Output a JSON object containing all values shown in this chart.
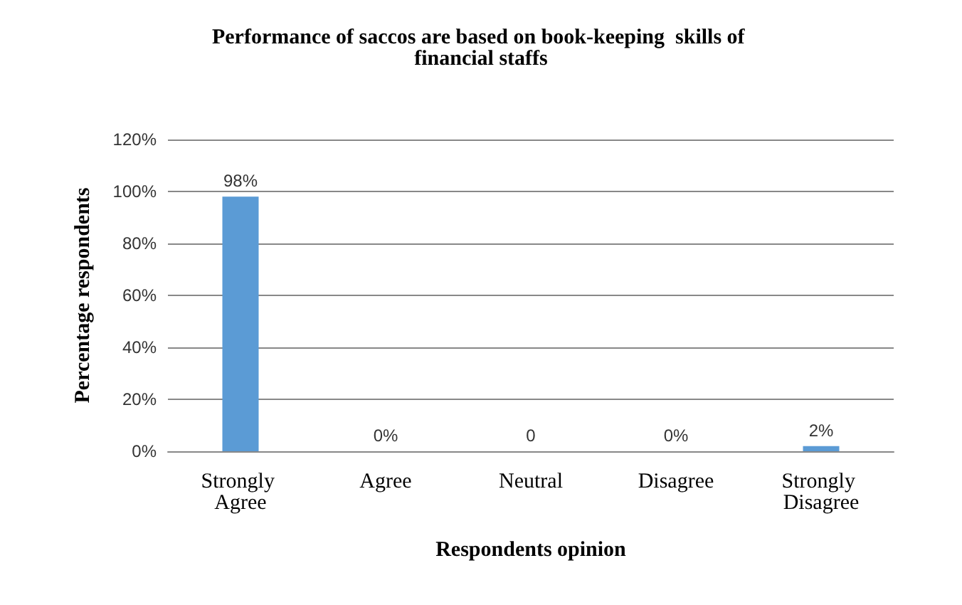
{
  "chart_data": {
    "type": "bar",
    "title": "Performance of saccos are based on book-keeping  skills of financial staffs",
    "xlabel": "Respondents opinion",
    "ylabel": "Percentage respondents",
    "categories": [
      "Strongly Agree",
      "Agree",
      "Neutral",
      "Disagree",
      "Strongly Disagree"
    ],
    "values": [
      98,
      0,
      0,
      0,
      2
    ],
    "value_labels": [
      "98%",
      "0%",
      "0",
      "0%",
      "2%"
    ],
    "color": "#5b9bd5",
    "ylim": [
      0,
      120
    ],
    "yticks": [
      {
        "value": 0,
        "label": "0%"
      },
      {
        "value": 20,
        "label": "20%"
      },
      {
        "value": 40,
        "label": "40%"
      },
      {
        "value": 60,
        "label": "60%"
      },
      {
        "value": 80,
        "label": "80%"
      },
      {
        "value": 100,
        "label": "100%"
      },
      {
        "value": 120,
        "label": "120%"
      }
    ],
    "grid": "y"
  }
}
